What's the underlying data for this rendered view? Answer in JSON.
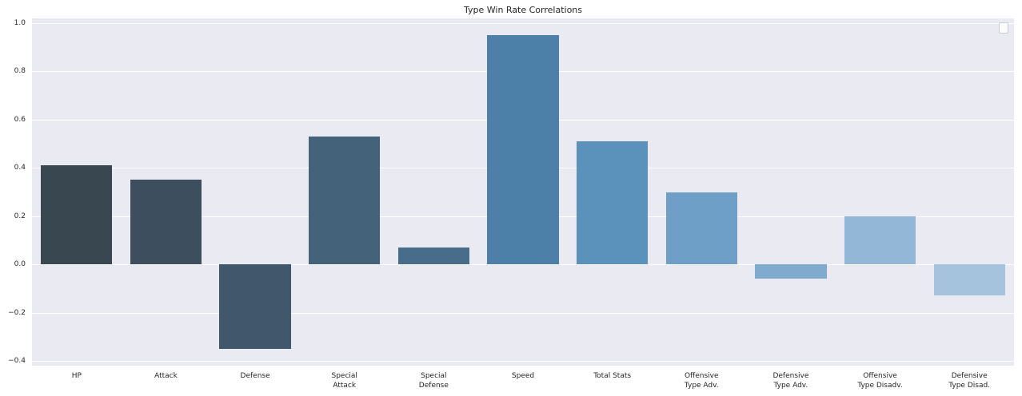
{
  "chart_data": {
    "type": "bar",
    "title": "Type Win Rate Correlations",
    "categories": [
      "HP",
      "Attack",
      "Defense",
      "Special\nAttack",
      "Special\nDefense",
      "Speed",
      "Total Stats",
      "Offensive\nType Adv.",
      "Defensive\nType Adv.",
      "Offensive\nType Disadv.",
      "Defensive\nType Disad."
    ],
    "values": [
      0.41,
      0.35,
      -0.35,
      0.53,
      0.07,
      0.95,
      0.51,
      0.3,
      -0.06,
      0.2,
      -0.13
    ],
    "bar_colors": [
      "#394751",
      "#3d4f5e",
      "#41586c",
      "#45627b",
      "#486d8a",
      "#4c80a8",
      "#5b92bb",
      "#6e9fc6",
      "#80abce",
      "#93b7d6",
      "#a5c3dd"
    ],
    "xlabel": "",
    "ylabel": "",
    "ylim": [
      -0.42,
      1.02
    ],
    "yticks": [
      -0.4,
      -0.2,
      0.0,
      0.2,
      0.4,
      0.6,
      0.8,
      1.0
    ],
    "grid": "horizontal-white-lines",
    "plot_background": "#eaeaf2",
    "figure_background": "#ffffff",
    "text_color": "#262626",
    "legend": {
      "visible": true,
      "position": "top-right",
      "entries": []
    }
  }
}
